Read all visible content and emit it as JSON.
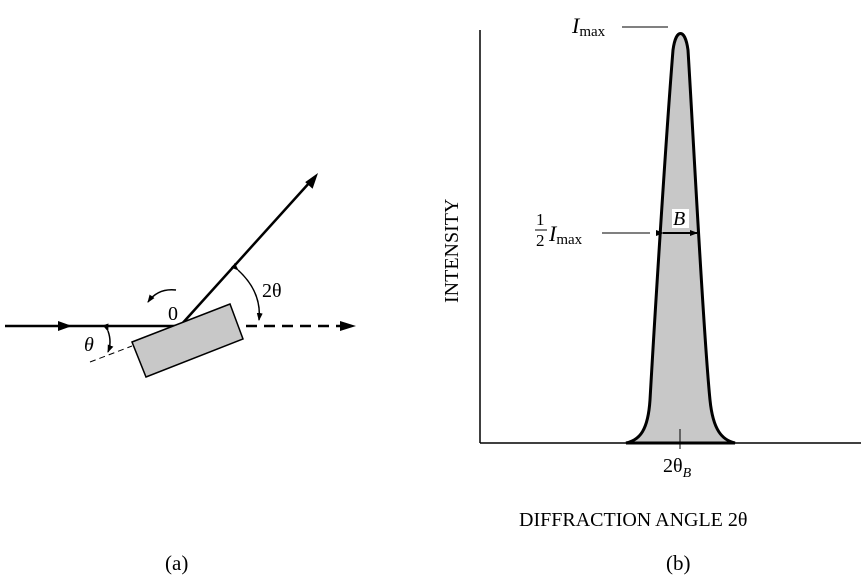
{
  "panel_a": {
    "caption": "(a)",
    "origin_label": "0",
    "theta_label": "θ",
    "two_theta_label": "2θ"
  },
  "panel_b": {
    "caption": "(b)",
    "y_axis_label": "INTENSITY",
    "x_axis_label": "DIFFRACTION ANGLE 2θ",
    "imax_I": "I",
    "imax_sub": "max",
    "half_num": "1",
    "half_den": "2",
    "half_I": "I",
    "half_sub": "max",
    "width_label": "B",
    "peak_label": "2θ",
    "peak_sub": "B"
  },
  "colors": {
    "peak_fill": "#c8c8c8",
    "sample_fill": "#c8c8c8",
    "stroke": "#000000"
  }
}
